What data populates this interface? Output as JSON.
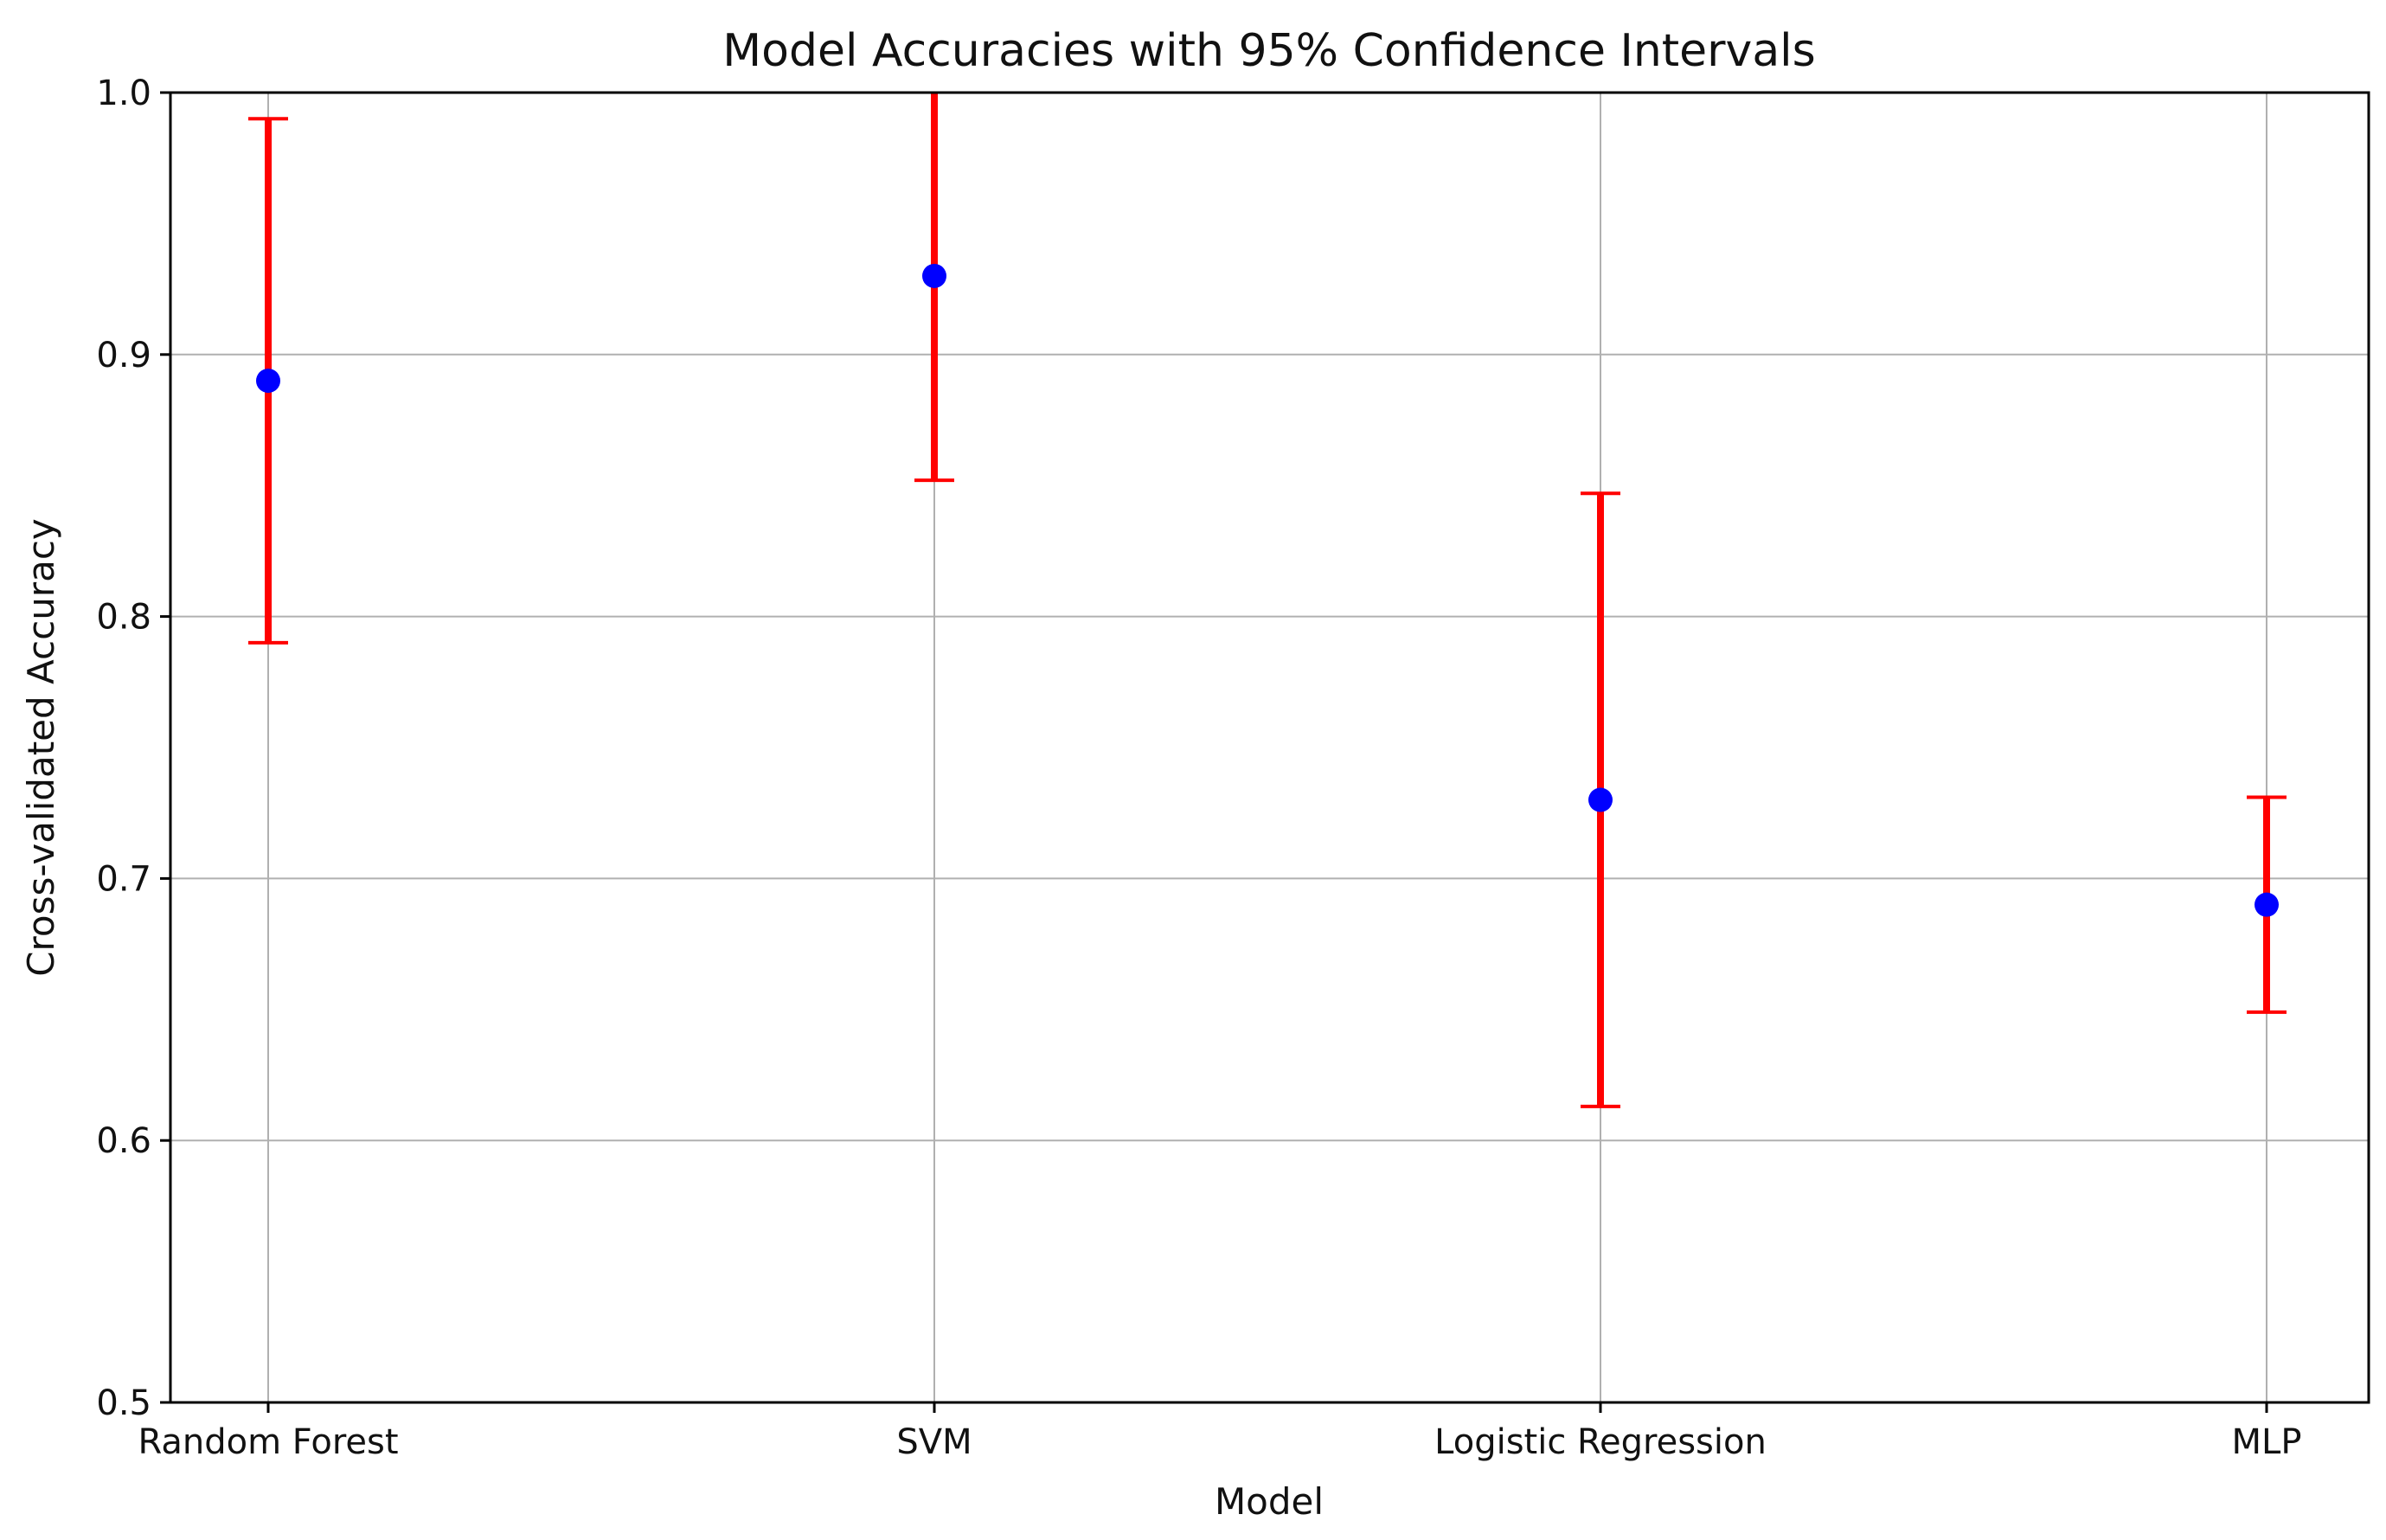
{
  "chart_data": {
    "type": "scatter",
    "title": "Model Accuracies with 95% Confidence Intervals",
    "xlabel": "Model",
    "ylabel": "Cross-validated Accuracy",
    "categories": [
      "Random Forest",
      "SVM",
      "Logistic Regression",
      "MLP"
    ],
    "series": [
      {
        "name": "Accuracy",
        "values": [
          0.89,
          0.93,
          0.73,
          0.69
        ],
        "ci_lower": [
          0.79,
          0.852,
          0.613,
          0.649
        ],
        "ci_upper": [
          0.99,
          1.0,
          0.847,
          0.731
        ]
      }
    ],
    "ylim": [
      0.5,
      1.0
    ],
    "yticks": [
      0.5,
      0.6,
      0.7,
      0.8,
      0.9,
      1.0
    ],
    "ytick_labels": [
      "0.5",
      "0.6",
      "0.7",
      "0.8",
      "0.9",
      "1.0"
    ],
    "grid": true,
    "colors": {
      "marker": "#0000ff",
      "errorbar": "#ff0000",
      "grid": "#b0b0b0",
      "axes": "#000000"
    }
  }
}
